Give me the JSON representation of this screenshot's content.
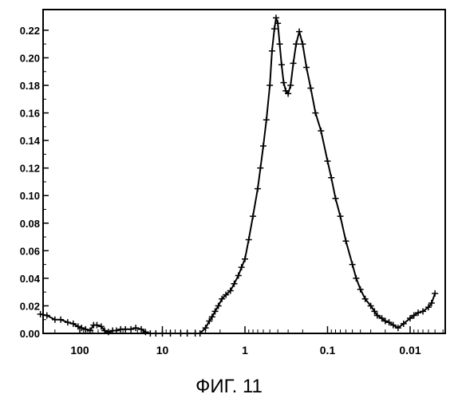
{
  "chart_data": {
    "type": "line",
    "title": "",
    "xlabel": "",
    "ylabel": "",
    "caption": "ФИГ. 11",
    "x_scale": "log",
    "x_reversed": true,
    "xlim": [
      300,
      0.005
    ],
    "ylim": [
      0,
      0.235
    ],
    "grid": false,
    "y_ticks": [
      "0.00",
      "0.02",
      "0.04",
      "0.06",
      "0.08",
      "0.10",
      "0.12",
      "0.14",
      "0.16",
      "0.18",
      "0.20",
      "0.22"
    ],
    "x_ticks": [
      "100",
      "10",
      "1",
      "0.1",
      "0.01"
    ],
    "series": [
      {
        "marker": "plus",
        "line_color": "#000000",
        "x": [
          300,
          250,
          200,
          170,
          140,
          120,
          105,
          95,
          85,
          75,
          68,
          62,
          55,
          50,
          45,
          40,
          36,
          32,
          28,
          24,
          21,
          18,
          16,
          14,
          12,
          10,
          8,
          6,
          5,
          4,
          3.5,
          3,
          2.7,
          2.5,
          2.3,
          2.1,
          1.9,
          1.7,
          1.5,
          1.35,
          1.2,
          1.1,
          1.0,
          0.9,
          0.8,
          0.7,
          0.65,
          0.6,
          0.55,
          0.5,
          0.47,
          0.44,
          0.42,
          0.4,
          0.38,
          0.36,
          0.34,
          0.32,
          0.3,
          0.28,
          0.26,
          0.24,
          0.22,
          0.2,
          0.18,
          0.16,
          0.14,
          0.12,
          0.1,
          0.09,
          0.08,
          0.07,
          0.06,
          0.05,
          0.045,
          0.04,
          0.035,
          0.03,
          0.027,
          0.025,
          0.022,
          0.02,
          0.018,
          0.016,
          0.014,
          0.012,
          0.01,
          0.009,
          0.008,
          0.007,
          0.006,
          0.0055,
          0.005
        ],
        "y": [
          0.014,
          0.013,
          0.01,
          0.01,
          0.008,
          0.007,
          0.005,
          0.004,
          0.003,
          0.002,
          0.006,
          0.006,
          0.005,
          0.002,
          0.001,
          0.002,
          0.002,
          0.003,
          0.003,
          0.003,
          0.004,
          0.003,
          0.001,
          0.0,
          0.0,
          0.0,
          0.0,
          0.0,
          0.0,
          0.0,
          0.0,
          0.004,
          0.009,
          0.012,
          0.016,
          0.02,
          0.025,
          0.028,
          0.031,
          0.036,
          0.042,
          0.048,
          0.054,
          0.068,
          0.085,
          0.105,
          0.12,
          0.136,
          0.155,
          0.18,
          0.205,
          0.221,
          0.229,
          0.225,
          0.21,
          0.195,
          0.182,
          0.176,
          0.174,
          0.18,
          0.196,
          0.21,
          0.219,
          0.21,
          0.193,
          0.178,
          0.16,
          0.147,
          0.125,
          0.113,
          0.098,
          0.085,
          0.067,
          0.05,
          0.04,
          0.032,
          0.025,
          0.02,
          0.016,
          0.013,
          0.011,
          0.009,
          0.008,
          0.006,
          0.004,
          0.007,
          0.011,
          0.013,
          0.015,
          0.016,
          0.019,
          0.022,
          0.029
        ]
      }
    ]
  }
}
